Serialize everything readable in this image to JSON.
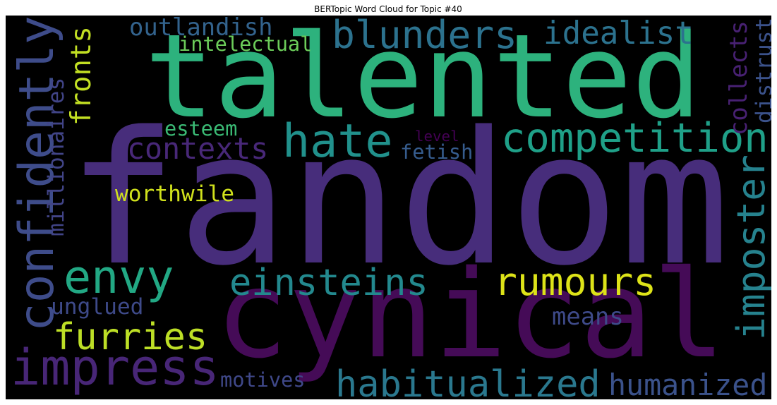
{
  "chart_data": {
    "type": "wordcloud",
    "title": "BERTopic Word Cloud for Topic #40",
    "background": "#000000",
    "words": [
      {
        "text": "fandom",
        "weight": 1.0,
        "color": "#472d7b"
      },
      {
        "text": "talented",
        "weight": 0.63,
        "color": "#2db27d"
      },
      {
        "text": "cynical",
        "weight": 0.66,
        "color": "#450b57"
      },
      {
        "text": "confidently",
        "weight": 0.26,
        "color": "#3e4c8a"
      },
      {
        "text": "blunders",
        "weight": 0.21,
        "color": "#2c728e"
      },
      {
        "text": "idealist",
        "weight": 0.17,
        "color": "#2c728e"
      },
      {
        "text": "outlandish",
        "weight": 0.13,
        "color": "#33638d"
      },
      {
        "text": "intelectual",
        "weight": 0.11,
        "color": "#6ccd5a"
      },
      {
        "text": "fronts",
        "weight": 0.15,
        "color": "#c2df23"
      },
      {
        "text": "millionaires",
        "weight": 0.12,
        "color": "#414487"
      },
      {
        "text": "hate",
        "weight": 0.25,
        "color": "#21918c"
      },
      {
        "text": "competition",
        "weight": 0.22,
        "color": "#1fa088"
      },
      {
        "text": "contexts",
        "weight": 0.16,
        "color": "#482878"
      },
      {
        "text": "esteem",
        "weight": 0.11,
        "color": "#3bbb75"
      },
      {
        "text": "level",
        "weight": 0.08,
        "color": "#440154"
      },
      {
        "text": "fetish",
        "weight": 0.11,
        "color": "#365c8d"
      },
      {
        "text": "worthwile",
        "weight": 0.12,
        "color": "#d0e11c"
      },
      {
        "text": "imposter",
        "weight": 0.21,
        "color": "#26828e"
      },
      {
        "text": "collects",
        "weight": 0.13,
        "color": "#482173"
      },
      {
        "text": "distrust",
        "weight": 0.12,
        "color": "#3b528b"
      },
      {
        "text": "envy",
        "weight": 0.25,
        "color": "#22a884"
      },
      {
        "text": "einsteins",
        "weight": 0.2,
        "color": "#23898e"
      },
      {
        "text": "rumours",
        "weight": 0.21,
        "color": "#dde318"
      },
      {
        "text": "unglued",
        "weight": 0.12,
        "color": "#3e4a89"
      },
      {
        "text": "furries",
        "weight": 0.2,
        "color": "#bddf26"
      },
      {
        "text": "means",
        "weight": 0.13,
        "color": "#3e4a89"
      },
      {
        "text": "impress",
        "weight": 0.27,
        "color": "#482677"
      },
      {
        "text": "habitualized",
        "weight": 0.2,
        "color": "#2a788e"
      },
      {
        "text": "humanized",
        "weight": 0.16,
        "color": "#3b528b"
      },
      {
        "text": "motives",
        "weight": 0.11,
        "color": "#3f4889"
      }
    ]
  }
}
